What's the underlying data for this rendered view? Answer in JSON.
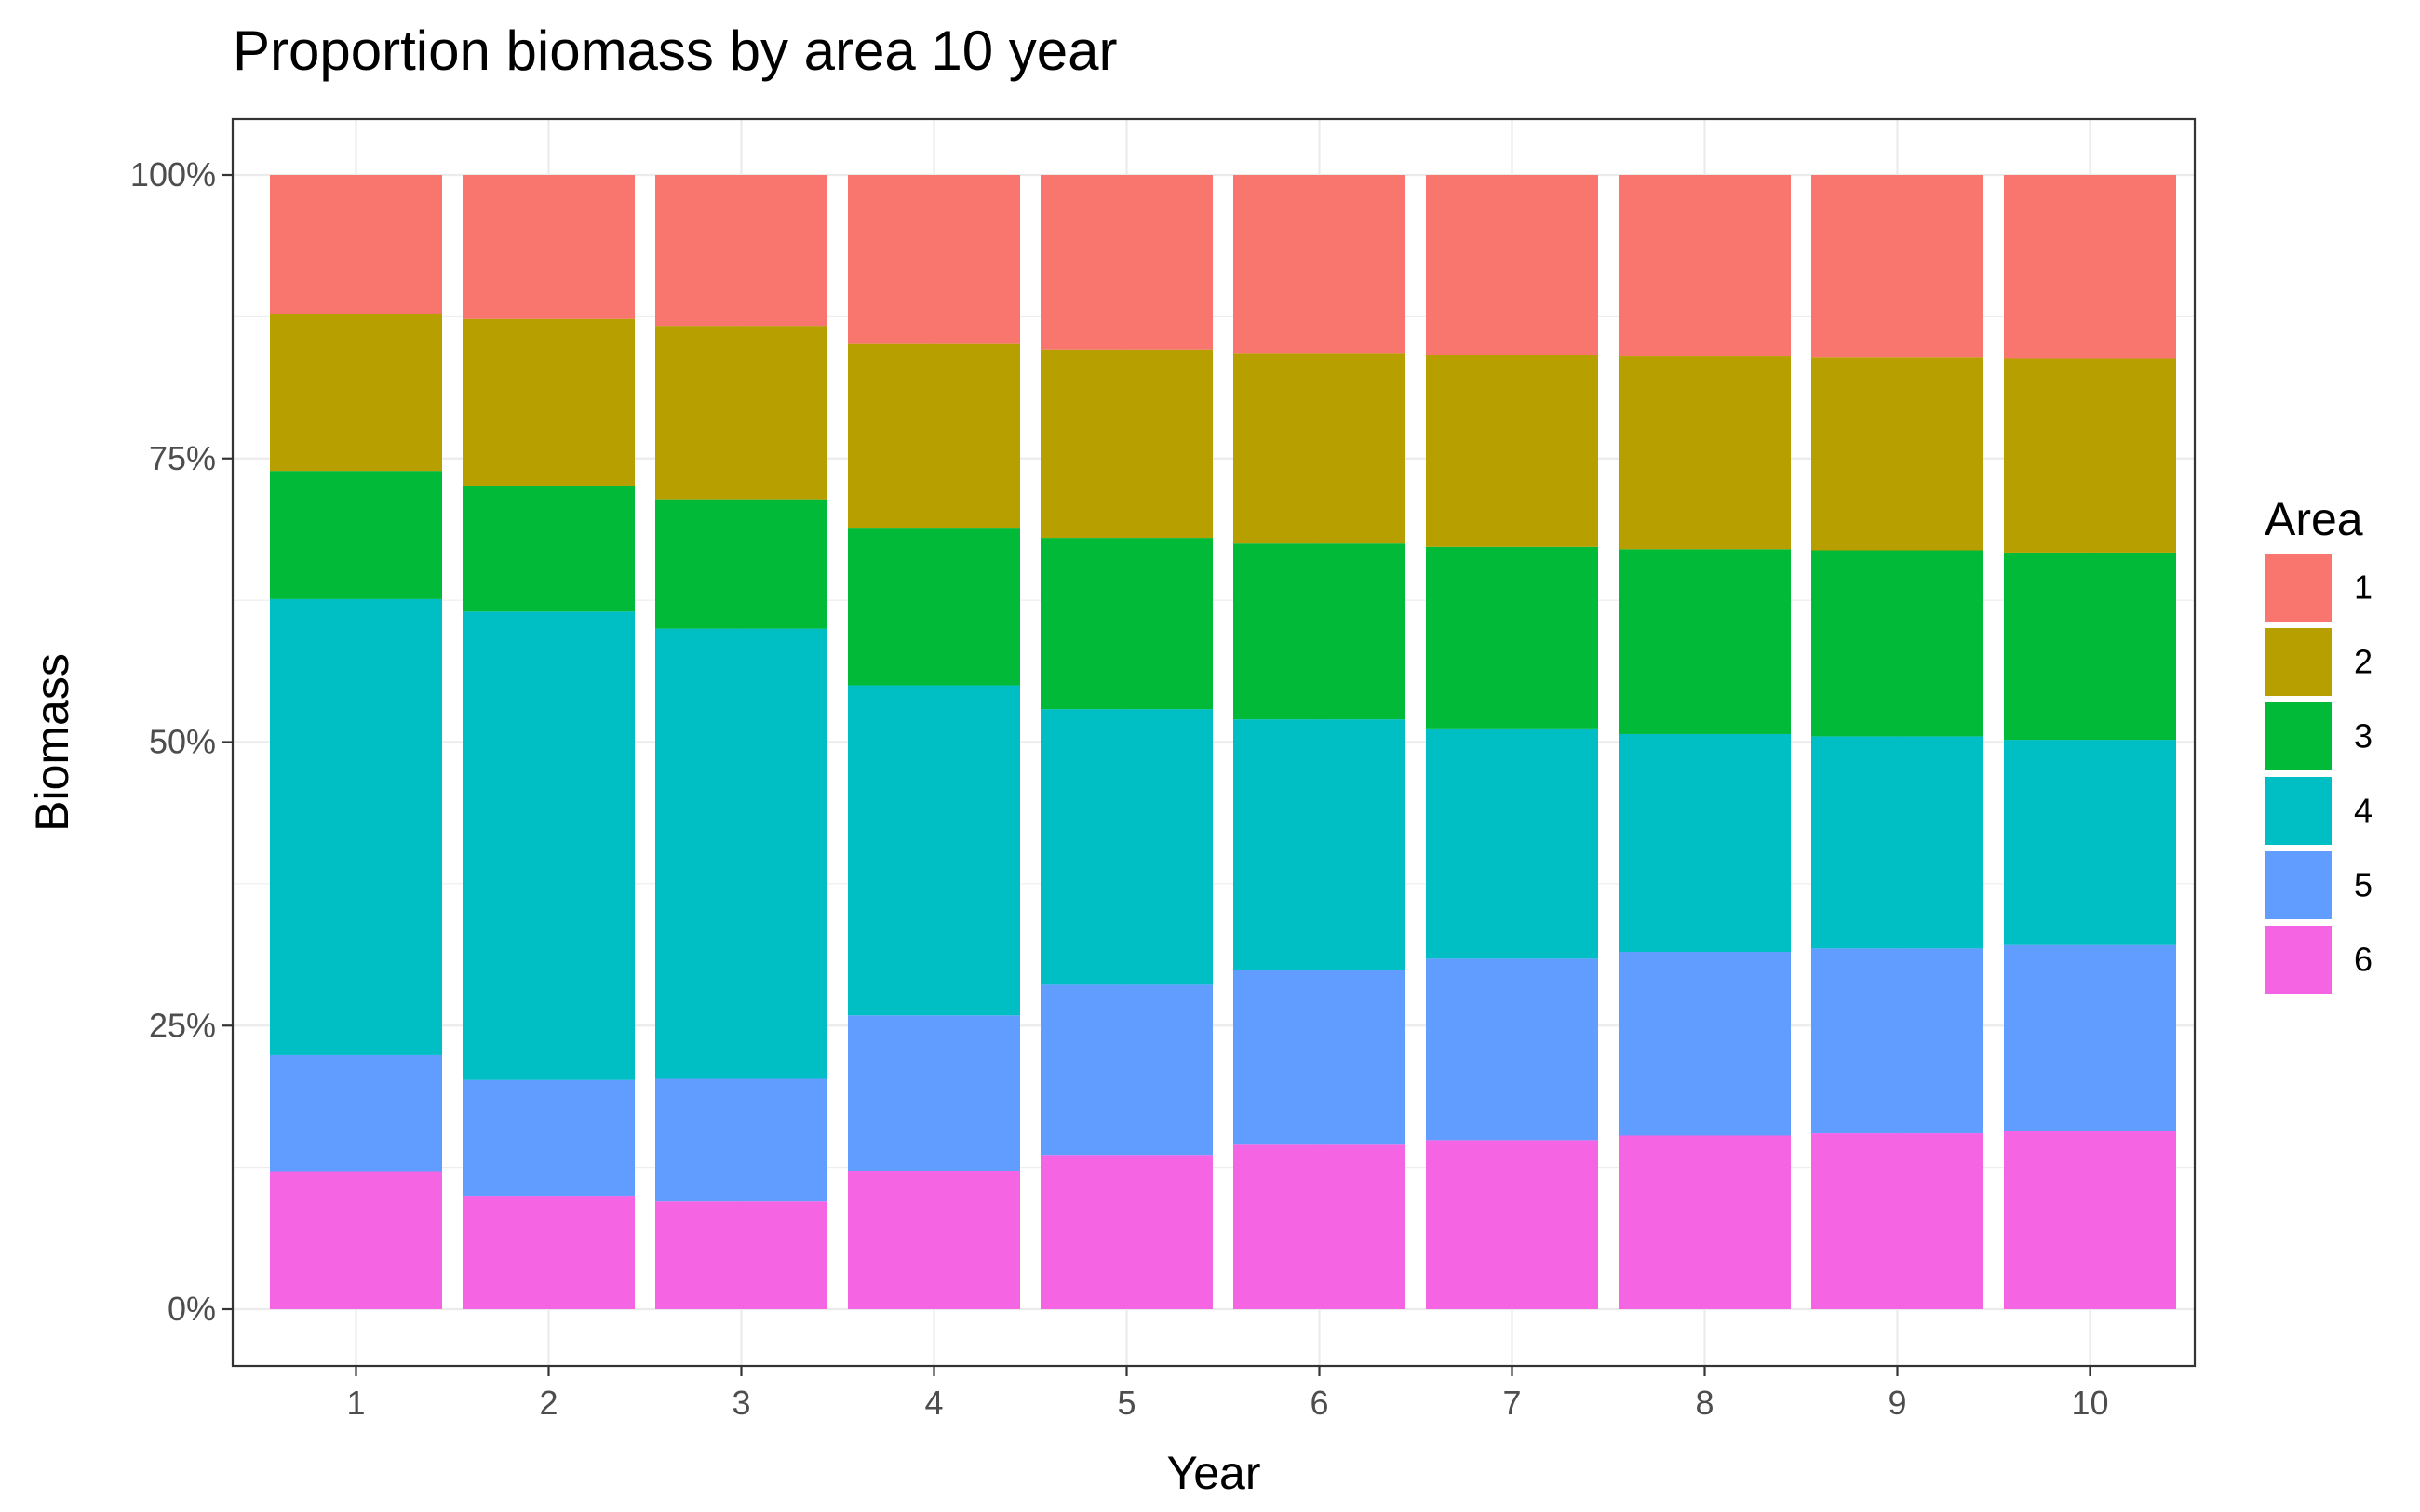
{
  "chart_data": {
    "type": "bar",
    "stacked": true,
    "percent": true,
    "title": "Proportion biomass by area 10 year",
    "xlabel": "Year",
    "ylabel": "Biomass",
    "categories": [
      "1",
      "2",
      "3",
      "4",
      "5",
      "6",
      "7",
      "8",
      "9",
      "10"
    ],
    "y_ticks": [
      "0%",
      "25%",
      "50%",
      "75%",
      "100%"
    ],
    "ylim": [
      0,
      1
    ],
    "grid": true,
    "legend": {
      "title": "Area",
      "position": "right"
    },
    "series": [
      {
        "name": "1",
        "color": "#F8766D",
        "values": [
          0.123,
          0.127,
          0.133,
          0.149,
          0.154,
          0.157,
          0.159,
          0.16,
          0.161,
          0.162
        ]
      },
      {
        "name": "2",
        "color": "#B79F00",
        "values": [
          0.138,
          0.147,
          0.153,
          0.162,
          0.166,
          0.168,
          0.169,
          0.17,
          0.17,
          0.171
        ]
      },
      {
        "name": "3",
        "color": "#00BA38",
        "values": [
          0.113,
          0.111,
          0.114,
          0.139,
          0.151,
          0.155,
          0.16,
          0.163,
          0.164,
          0.165
        ]
      },
      {
        "name": "4",
        "color": "#00BFC4",
        "values": [
          0.402,
          0.413,
          0.397,
          0.291,
          0.243,
          0.221,
          0.203,
          0.192,
          0.187,
          0.181
        ]
      },
      {
        "name": "5",
        "color": "#619CFF",
        "values": [
          0.103,
          0.102,
          0.108,
          0.137,
          0.15,
          0.154,
          0.16,
          0.162,
          0.163,
          0.164
        ]
      },
      {
        "name": "6",
        "color": "#F564E3",
        "values": [
          0.121,
          0.1,
          0.095,
          0.122,
          0.136,
          0.145,
          0.149,
          0.153,
          0.155,
          0.157
        ]
      }
    ]
  }
}
